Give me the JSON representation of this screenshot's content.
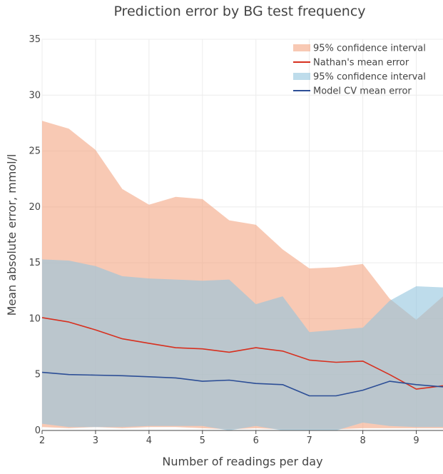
{
  "chart_data": {
    "type": "area",
    "title": "Prediction error by BG test frequency",
    "xlabel": "Number of readings per day",
    "ylabel": "Mean absolute error, mmol/l",
    "xlim": [
      2,
      9.5
    ],
    "ylim": [
      0,
      35
    ],
    "xticks": [
      2,
      3,
      4,
      5,
      6,
      7,
      8,
      9
    ],
    "yticks": [
      0,
      5,
      10,
      15,
      20,
      25,
      30,
      35
    ],
    "grid": true,
    "legend_position": "top-right",
    "series": [
      {
        "name": "95% confidence interval",
        "kind": "band",
        "color": "#f4a582",
        "x": [
          2,
          2.5,
          3,
          3.5,
          4,
          4.5,
          5,
          5.5,
          6,
          6.5,
          7,
          7.5,
          8,
          8.5,
          9,
          9.5
        ],
        "upper": [
          27.7,
          27.0,
          25.1,
          21.6,
          20.2,
          20.9,
          20.7,
          18.8,
          18.4,
          16.2,
          14.5,
          14.6,
          14.9,
          11.8,
          9.9,
          12.0
        ],
        "lower": [
          0.3,
          0.2,
          0.3,
          0.2,
          0.3,
          0.3,
          0.2,
          0.1,
          0.2,
          0.1,
          0.1,
          0.1,
          0.2,
          0.2,
          0.2,
          0.2
        ]
      },
      {
        "name": "Nathan's mean error",
        "kind": "line",
        "color": "#d7301f",
        "x": [
          2,
          2.5,
          3,
          3.5,
          4,
          4.5,
          5,
          5.5,
          6,
          6.5,
          7,
          7.5,
          8,
          8.5,
          9,
          9.5
        ],
        "y": [
          10.1,
          9.7,
          9.0,
          8.2,
          7.8,
          7.4,
          7.3,
          7.0,
          7.4,
          7.1,
          6.3,
          6.1,
          6.2,
          5.0,
          3.7,
          4.0
        ]
      },
      {
        "name": "95% confidence interval",
        "kind": "band",
        "color": "#92c5de",
        "x": [
          2,
          2.5,
          3,
          3.5,
          4,
          4.5,
          5,
          5.5,
          6,
          6.5,
          7,
          7.5,
          8,
          8.5,
          9,
          9.5
        ],
        "upper": [
          15.3,
          15.2,
          14.7,
          13.8,
          13.6,
          13.5,
          13.4,
          13.5,
          11.3,
          12.0,
          8.8,
          9.0,
          9.2,
          11.6,
          12.9,
          12.8
        ],
        "lower": [
          0.6,
          0.3,
          0.3,
          0.3,
          0.4,
          0.4,
          0.4,
          0.0,
          0.4,
          0.0,
          0.0,
          0.0,
          0.7,
          0.4,
          0.3,
          0.3
        ]
      },
      {
        "name": "Model CV mean error",
        "kind": "line",
        "color": "#2c4e96",
        "x": [
          2,
          2.5,
          3,
          3.5,
          4,
          4.5,
          5,
          5.5,
          6,
          6.5,
          7,
          7.5,
          8,
          8.5,
          9,
          9.5
        ],
        "y": [
          5.2,
          5.0,
          4.95,
          4.9,
          4.8,
          4.7,
          4.4,
          4.5,
          4.2,
          4.1,
          3.1,
          3.1,
          3.6,
          4.4,
          4.1,
          3.9
        ]
      }
    ]
  }
}
